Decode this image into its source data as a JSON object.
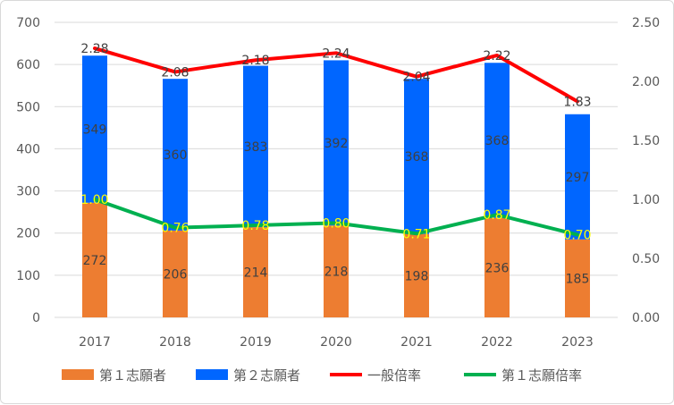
{
  "chart_data": {
    "type": "bar",
    "stacked": true,
    "categories": [
      "2017",
      "2018",
      "2019",
      "2020",
      "2021",
      "2022",
      "2023"
    ],
    "series": [
      {
        "name": "第１志願者",
        "kind": "bar",
        "axis": "left",
        "color": "#ED7D31",
        "values": [
          272,
          206,
          214,
          218,
          198,
          236,
          185
        ]
      },
      {
        "name": "第２志願者",
        "kind": "bar",
        "axis": "left",
        "color": "#0066FF",
        "values": [
          349,
          360,
          383,
          392,
          368,
          368,
          297
        ]
      },
      {
        "name": "一般倍率",
        "kind": "line",
        "axis": "right",
        "color": "#FF0000",
        "values": [
          2.28,
          2.08,
          2.18,
          2.24,
          2.04,
          2.22,
          1.83
        ]
      },
      {
        "name": "第１志願倍率",
        "kind": "line",
        "axis": "right",
        "color": "#00B050",
        "values": [
          1.0,
          0.76,
          0.78,
          0.8,
          0.71,
          0.87,
          0.7
        ]
      }
    ],
    "left_axis": {
      "ylim": [
        0,
        700
      ],
      "ticks": [
        "0",
        "100",
        "200",
        "300",
        "400",
        "500",
        "600",
        "700"
      ]
    },
    "right_axis": {
      "ylim": [
        0,
        2.5
      ],
      "ticks": [
        "0.00",
        "0.50",
        "1.00",
        "1.50",
        "2.00",
        "2.50"
      ]
    },
    "grid": true,
    "legend": "bottom",
    "data_label_colors": {
      "bars": "#404040",
      "line1": "#404040",
      "line2": "#FFFF00"
    }
  }
}
